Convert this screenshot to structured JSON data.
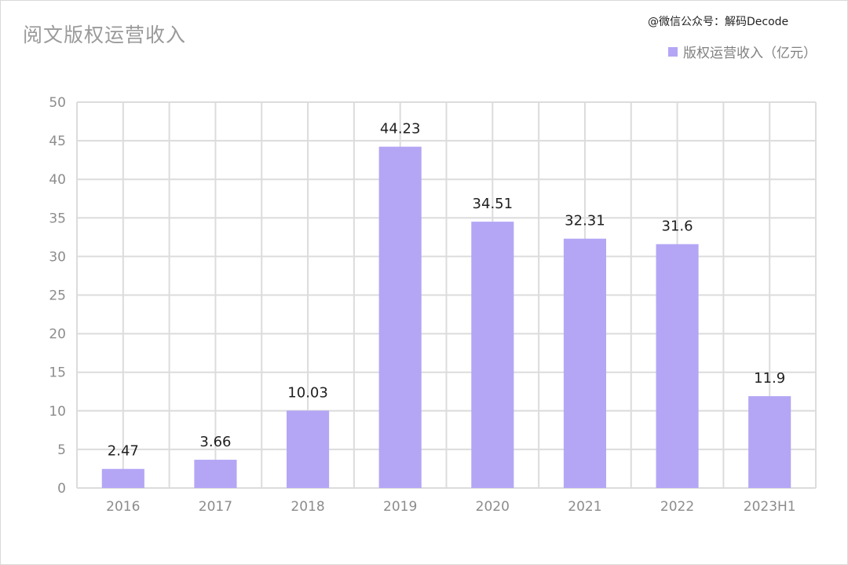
{
  "watermark": "@微信公众号：解码Decode",
  "chart_data": {
    "type": "bar",
    "title": "阅文版权运营收入",
    "categories": [
      "2016",
      "2017",
      "2018",
      "2019",
      "2020",
      "2021",
      "2022",
      "2023H1"
    ],
    "series": [
      {
        "name": "版权运营收入（亿元）",
        "values": [
          2.47,
          3.66,
          10.03,
          44.23,
          34.51,
          32.31,
          31.6,
          11.9
        ],
        "labels": [
          "2.47",
          "3.66",
          "10.03",
          "44.23",
          "34.51",
          "32.31",
          "31.6",
          "11.9"
        ]
      }
    ],
    "ylim": [
      0,
      50
    ],
    "yticks": [
      "0",
      "5",
      "10",
      "15",
      "20",
      "25",
      "30",
      "35",
      "40",
      "45",
      "50"
    ],
    "xlabel": "",
    "ylabel": "",
    "grid": true,
    "legend_position": "top-right",
    "bar_color": "#b4a6f5"
  }
}
